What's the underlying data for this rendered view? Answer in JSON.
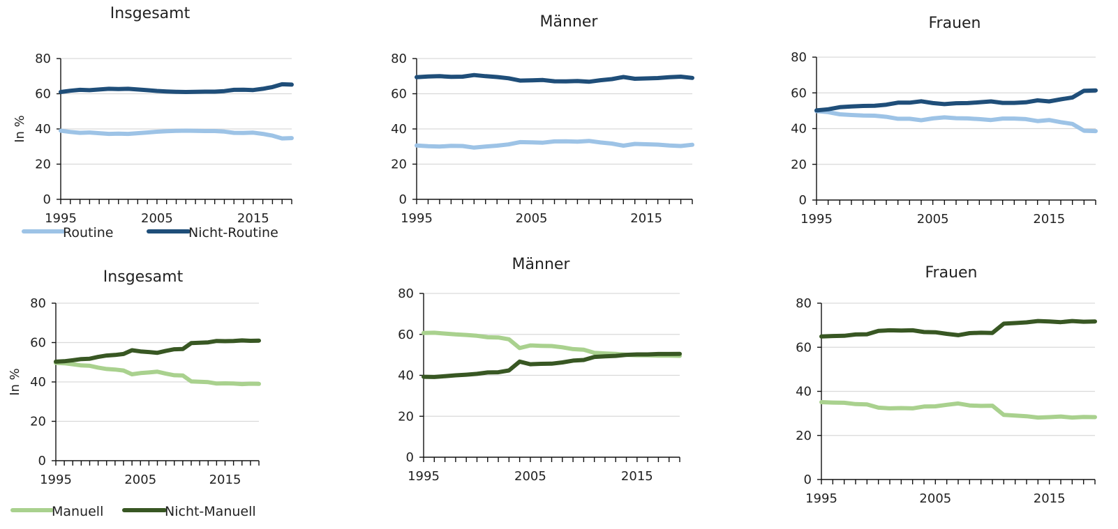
{
  "chart_data": [
    {
      "type": "line",
      "title": "Insgesamt",
      "ylabel": "In %",
      "ylim": [
        0,
        80
      ],
      "yticks": [
        0,
        20,
        40,
        60,
        80
      ],
      "xlim": [
        1995,
        2019
      ],
      "xticks": [
        1995,
        2005,
        2015
      ],
      "x": [
        1995,
        1996,
        1997,
        1998,
        1999,
        2000,
        2001,
        2002,
        2003,
        2004,
        2005,
        2006,
        2007,
        2008,
        2009,
        2010,
        2011,
        2012,
        2013,
        2014,
        2015,
        2016,
        2017,
        2018,
        2019
      ],
      "series": [
        {
          "name": "Routine",
          "color": "#9dc3e6",
          "values": [
            39,
            38.3,
            37.8,
            38,
            37.6,
            37.2,
            37.3,
            37.2,
            37.6,
            38,
            38.4,
            38.7,
            38.9,
            39,
            38.9,
            38.8,
            38.8,
            38.5,
            37.8,
            37.7,
            37.9,
            37.2,
            36.2,
            34.6,
            34.8
          ]
        },
        {
          "name": "Nicht-Routine",
          "color": "#1f4e79",
          "values": [
            61,
            61.7,
            62.2,
            62,
            62.4,
            62.8,
            62.7,
            62.8,
            62.4,
            62,
            61.6,
            61.3,
            61.1,
            61,
            61.1,
            61.2,
            61.2,
            61.5,
            62.2,
            62.3,
            62.1,
            62.8,
            63.8,
            65.4,
            65.2
          ]
        }
      ]
    },
    {
      "type": "line",
      "title": "Männer",
      "ylabel": "",
      "ylim": [
        0,
        80
      ],
      "yticks": [
        0,
        20,
        40,
        60,
        80
      ],
      "xlim": [
        1995,
        2019
      ],
      "xticks": [
        1995,
        2005,
        2015
      ],
      "x": [
        1995,
        1996,
        1997,
        1998,
        1999,
        2000,
        2001,
        2002,
        2003,
        2004,
        2005,
        2006,
        2007,
        2008,
        2009,
        2010,
        2011,
        2012,
        2013,
        2014,
        2015,
        2016,
        2017,
        2018,
        2019
      ],
      "series": [
        {
          "name": "Routine",
          "color": "#9dc3e6",
          "values": [
            30.6,
            30.2,
            30,
            30.4,
            30.3,
            29.4,
            30,
            30.5,
            31.2,
            32.5,
            32.4,
            32.2,
            32.9,
            33,
            32.8,
            33.2,
            32.3,
            31.7,
            30.5,
            31.5,
            31.3,
            31.1,
            30.6,
            30.3,
            31
          ]
        },
        {
          "name": "Nicht-Routine",
          "color": "#1f4e79",
          "values": [
            69.4,
            69.8,
            70,
            69.6,
            69.7,
            70.6,
            70,
            69.5,
            68.8,
            67.5,
            67.6,
            67.8,
            67.1,
            67,
            67.2,
            66.8,
            67.7,
            68.3,
            69.5,
            68.5,
            68.7,
            68.9,
            69.4,
            69.7,
            69
          ]
        }
      ]
    },
    {
      "type": "line",
      "title": "Frauen",
      "ylabel": "",
      "ylim": [
        0,
        80
      ],
      "yticks": [
        0,
        20,
        40,
        60,
        80
      ],
      "xlim": [
        1995,
        2019
      ],
      "xticks": [
        1995,
        2005,
        2015
      ],
      "x": [
        1995,
        1996,
        1997,
        1998,
        1999,
        2000,
        2001,
        2002,
        2003,
        2004,
        2005,
        2006,
        2007,
        2008,
        2009,
        2010,
        2011,
        2012,
        2013,
        2014,
        2015,
        2016,
        2017,
        2018,
        2019
      ],
      "series": [
        {
          "name": "Routine",
          "color": "#9dc3e6",
          "values": [
            49.8,
            49.2,
            48,
            47.6,
            47.3,
            47.2,
            46.6,
            45.5,
            45.5,
            44.7,
            45.7,
            46.3,
            45.8,
            45.7,
            45.3,
            44.8,
            45.6,
            45.6,
            45.3,
            44.2,
            44.8,
            43.6,
            42.6,
            38.8,
            38.6
          ]
        },
        {
          "name": "Nicht-Routine",
          "color": "#1f4e79",
          "values": [
            50.2,
            50.8,
            52,
            52.4,
            52.7,
            52.8,
            53.4,
            54.5,
            54.5,
            55.3,
            54.3,
            53.7,
            54.2,
            54.3,
            54.7,
            55.2,
            54.4,
            54.4,
            54.7,
            55.8,
            55.2,
            56.4,
            57.4,
            61.2,
            61.4
          ]
        }
      ]
    },
    {
      "type": "line",
      "title": "Insgesamt",
      "ylabel": "In %",
      "ylim": [
        0,
        80
      ],
      "yticks": [
        0,
        20,
        40,
        60,
        80
      ],
      "xlim": [
        1995,
        2019
      ],
      "xticks": [
        1995,
        2005,
        2015
      ],
      "x": [
        1995,
        1996,
        1997,
        1998,
        1999,
        2000,
        2001,
        2002,
        2003,
        2004,
        2005,
        2006,
        2007,
        2008,
        2009,
        2010,
        2011,
        2012,
        2013,
        2014,
        2015,
        2016,
        2017,
        2018,
        2019
      ],
      "series": [
        {
          "name": "Manuell",
          "color": "#a9d18e",
          "values": [
            49.7,
            49.5,
            49,
            48.4,
            48.2,
            47.3,
            46.6,
            46.3,
            45.8,
            43.9,
            44.5,
            44.8,
            45.2,
            44.2,
            43.4,
            43.3,
            40.3,
            40.1,
            39.9,
            39.2,
            39.3,
            39.2,
            38.9,
            39.1,
            39
          ]
        },
        {
          "name": "Nicht-Manuell",
          "color": "#385723",
          "values": [
            50.3,
            50.5,
            51,
            51.6,
            51.8,
            52.7,
            53.4,
            53.7,
            54.2,
            56.1,
            55.5,
            55.2,
            54.8,
            55.8,
            56.6,
            56.7,
            59.7,
            59.9,
            60.1,
            60.8,
            60.7,
            60.8,
            61.1,
            60.9,
            61
          ]
        }
      ]
    },
    {
      "type": "line",
      "title": "Männer",
      "ylabel": "",
      "ylim": [
        0,
        80
      ],
      "yticks": [
        0,
        20,
        40,
        60,
        80
      ],
      "xlim": [
        1995,
        2019
      ],
      "xticks": [
        1995,
        2005,
        2015
      ],
      "x": [
        1995,
        1996,
        1997,
        1998,
        1999,
        2000,
        2001,
        2002,
        2003,
        2004,
        2005,
        2006,
        2007,
        2008,
        2009,
        2010,
        2011,
        2012,
        2013,
        2014,
        2015,
        2016,
        2017,
        2018,
        2019
      ],
      "series": [
        {
          "name": "Manuell",
          "color": "#a9d18e",
          "values": [
            60.7,
            60.8,
            60.4,
            60,
            59.7,
            59.3,
            58.6,
            58.5,
            57.6,
            53.3,
            54.6,
            54.4,
            54.3,
            53.7,
            52.8,
            52.5,
            51,
            50.7,
            50.5,
            50,
            49.8,
            49.8,
            49.6,
            49.6,
            49.5
          ]
        },
        {
          "name": "Nicht-Manuell",
          "color": "#385723",
          "values": [
            39.3,
            39.2,
            39.6,
            40,
            40.3,
            40.7,
            41.4,
            41.5,
            42.4,
            46.7,
            45.4,
            45.6,
            45.7,
            46.3,
            47.2,
            47.5,
            49,
            49.3,
            49.5,
            50,
            50.2,
            50.2,
            50.4,
            50.4,
            50.5
          ]
        }
      ]
    },
    {
      "type": "line",
      "title": "Frauen",
      "ylabel": "",
      "ylim": [
        0,
        80
      ],
      "yticks": [
        0,
        20,
        40,
        60,
        80
      ],
      "xlim": [
        1995,
        2019
      ],
      "xticks": [
        1995,
        2005,
        2015
      ],
      "x": [
        1995,
        1996,
        1997,
        1998,
        1999,
        2000,
        2001,
        2002,
        2003,
        2004,
        2005,
        2006,
        2007,
        2008,
        2009,
        2010,
        2011,
        2012,
        2013,
        2014,
        2015,
        2016,
        2017,
        2018,
        2019
      ],
      "series": [
        {
          "name": "Manuell",
          "color": "#a9d18e",
          "values": [
            35.1,
            34.9,
            34.8,
            34.2,
            34.1,
            32.6,
            32.3,
            32.4,
            32.3,
            33.1,
            33.2,
            33.9,
            34.5,
            33.6,
            33.4,
            33.5,
            29.3,
            29,
            28.7,
            28.1,
            28.3,
            28.6,
            28.1,
            28.4,
            28.3
          ]
        },
        {
          "name": "Nicht-Manuell",
          "color": "#385723",
          "values": [
            64.9,
            65.1,
            65.2,
            65.8,
            65.9,
            67.4,
            67.7,
            67.6,
            67.7,
            66.9,
            66.8,
            66.1,
            65.5,
            66.4,
            66.6,
            66.5,
            70.7,
            71,
            71.3,
            71.9,
            71.7,
            71.4,
            71.9,
            71.6,
            71.7
          ]
        }
      ]
    }
  ],
  "legends": [
    {
      "items": [
        {
          "label": "Routine",
          "color": "#9dc3e6"
        },
        {
          "label": "Nicht-Routine",
          "color": "#1f4e79"
        }
      ]
    },
    {
      "items": [
        {
          "label": "Manuell",
          "color": "#a9d18e"
        },
        {
          "label": "Nicht-Manuell",
          "color": "#385723"
        }
      ]
    }
  ]
}
